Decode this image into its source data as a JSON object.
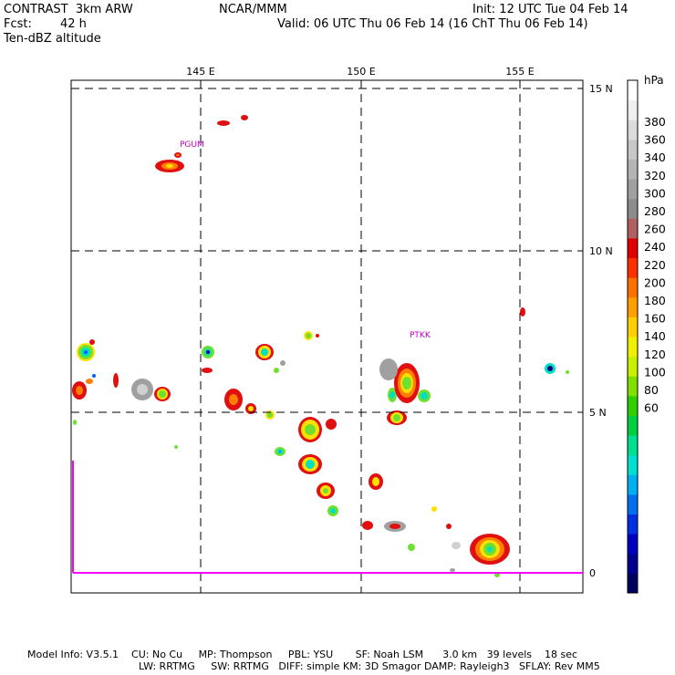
{
  "header": {
    "model": "CONTRAST  3km ARW",
    "org": "NCAR/MMM",
    "init": "Init: 12 UTC Tue 04 Feb 14",
    "fcst_label": "Fcst:",
    "fcst_value": "42 h",
    "valid": "Valid: 06 UTC Thu 06 Feb 14 (16 ChT Thu 06 Feb 14)",
    "field": "Ten-dBZ altitude"
  },
  "map": {
    "lon_labels": [
      "145 E",
      "150 E",
      "155 E"
    ],
    "lat_labels": [
      "15 N",
      "10 N",
      "5 N",
      "0"
    ],
    "stations": [
      "PGUM",
      "PTKK"
    ],
    "station_color": "#c000c0",
    "boundary_color": "#ff00ff"
  },
  "colorbar": {
    "unit": "hPa",
    "labels": [
      "380",
      "360",
      "340",
      "320",
      "300",
      "280",
      "260",
      "240",
      "220",
      "200",
      "180",
      "160",
      "140",
      "120",
      "100",
      "80",
      "60"
    ],
    "colors": [
      "#ffffff",
      "#f0f0f0",
      "#dcdcdc",
      "#c8c8c8",
      "#b4b4b4",
      "#a0a0a0",
      "#8c8c8c",
      "#b06060",
      "#e00000",
      "#ff3000",
      "#ff7000",
      "#ffa000",
      "#ffd000",
      "#f0f000",
      "#c8f000",
      "#80e000",
      "#30d000",
      "#00d040",
      "#00e090",
      "#00e0d0",
      "#00b0f0",
      "#0070f0",
      "#0030e0",
      "#0000c0",
      "#000090",
      "#000060"
    ]
  },
  "footer": {
    "line1": "Model Info: V3.5.1    CU: No Cu     MP: Thompson     PBL: YSU       SF: Noah LSM      3.0 km   39 levels    18 sec",
    "line2": "LW: RRTMG     SW: RRTMG   DIFF: simple KM: 3D Smagor DAMP: Rayleigh3   SFLAY: Rev MM5"
  }
}
